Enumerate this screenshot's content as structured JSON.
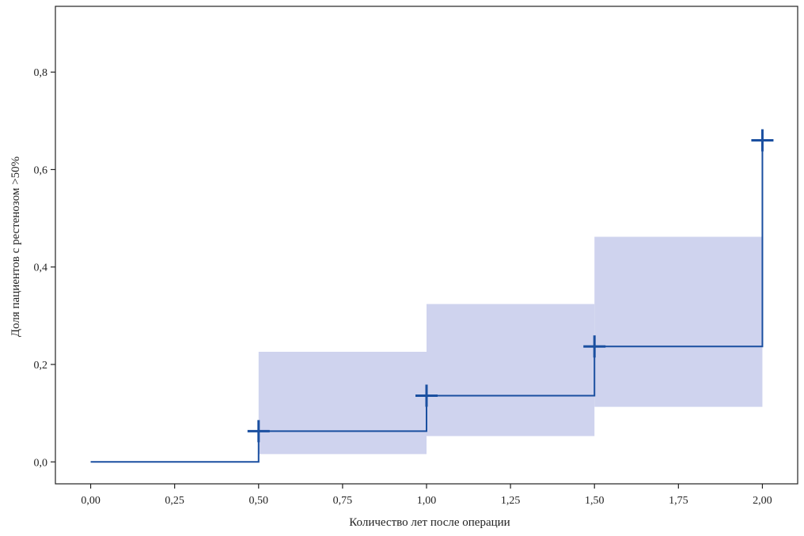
{
  "chart_data": {
    "type": "line",
    "subtype": "step-with-confidence-band",
    "xlabel": "Количество лет после операции",
    "ylabel": "Доля пациентов с рестенозом >50%",
    "xlim": [
      -0.105,
      2.105
    ],
    "ylim": [
      -0.045,
      0.935
    ],
    "x_ticks": [
      0,
      0.25,
      0.5,
      0.75,
      1.0,
      1.25,
      1.5,
      1.75,
      2.0
    ],
    "x_tick_labels": [
      "0,00",
      "0,25",
      "0,50",
      "0,75",
      "1,00",
      "1,25",
      "1,50",
      "1,75",
      "2,00"
    ],
    "y_ticks": [
      0,
      0.2,
      0.4,
      0.6,
      0.8
    ],
    "y_tick_labels": [
      "0,0",
      "0,2",
      "0,4",
      "0,6",
      "0,8"
    ],
    "grid": false,
    "legend": "none",
    "series": [
      {
        "step_x": [
          0,
          0.5,
          1.0,
          1.5,
          2.0
        ],
        "step_y": [
          0,
          0.063,
          0.136,
          0.237,
          0.66
        ],
        "band": [
          {
            "x0": 0.5,
            "x1": 1.0,
            "lo": 0.016,
            "hi": 0.226
          },
          {
            "x0": 1.0,
            "x1": 1.5,
            "lo": 0.053,
            "hi": 0.324
          },
          {
            "x0": 1.5,
            "x1": 2.0,
            "lo": 0.113,
            "hi": 0.462
          }
        ],
        "censor_marks": [
          {
            "x": 0.5,
            "y": 0.063
          },
          {
            "x": 1.0,
            "y": 0.136
          },
          {
            "x": 1.5,
            "y": 0.237
          },
          {
            "x": 2.0,
            "y": 0.66
          }
        ]
      }
    ],
    "colors": {
      "line": "#1a4fa0",
      "band": "#cfd3ee",
      "axis": "#222222"
    }
  }
}
